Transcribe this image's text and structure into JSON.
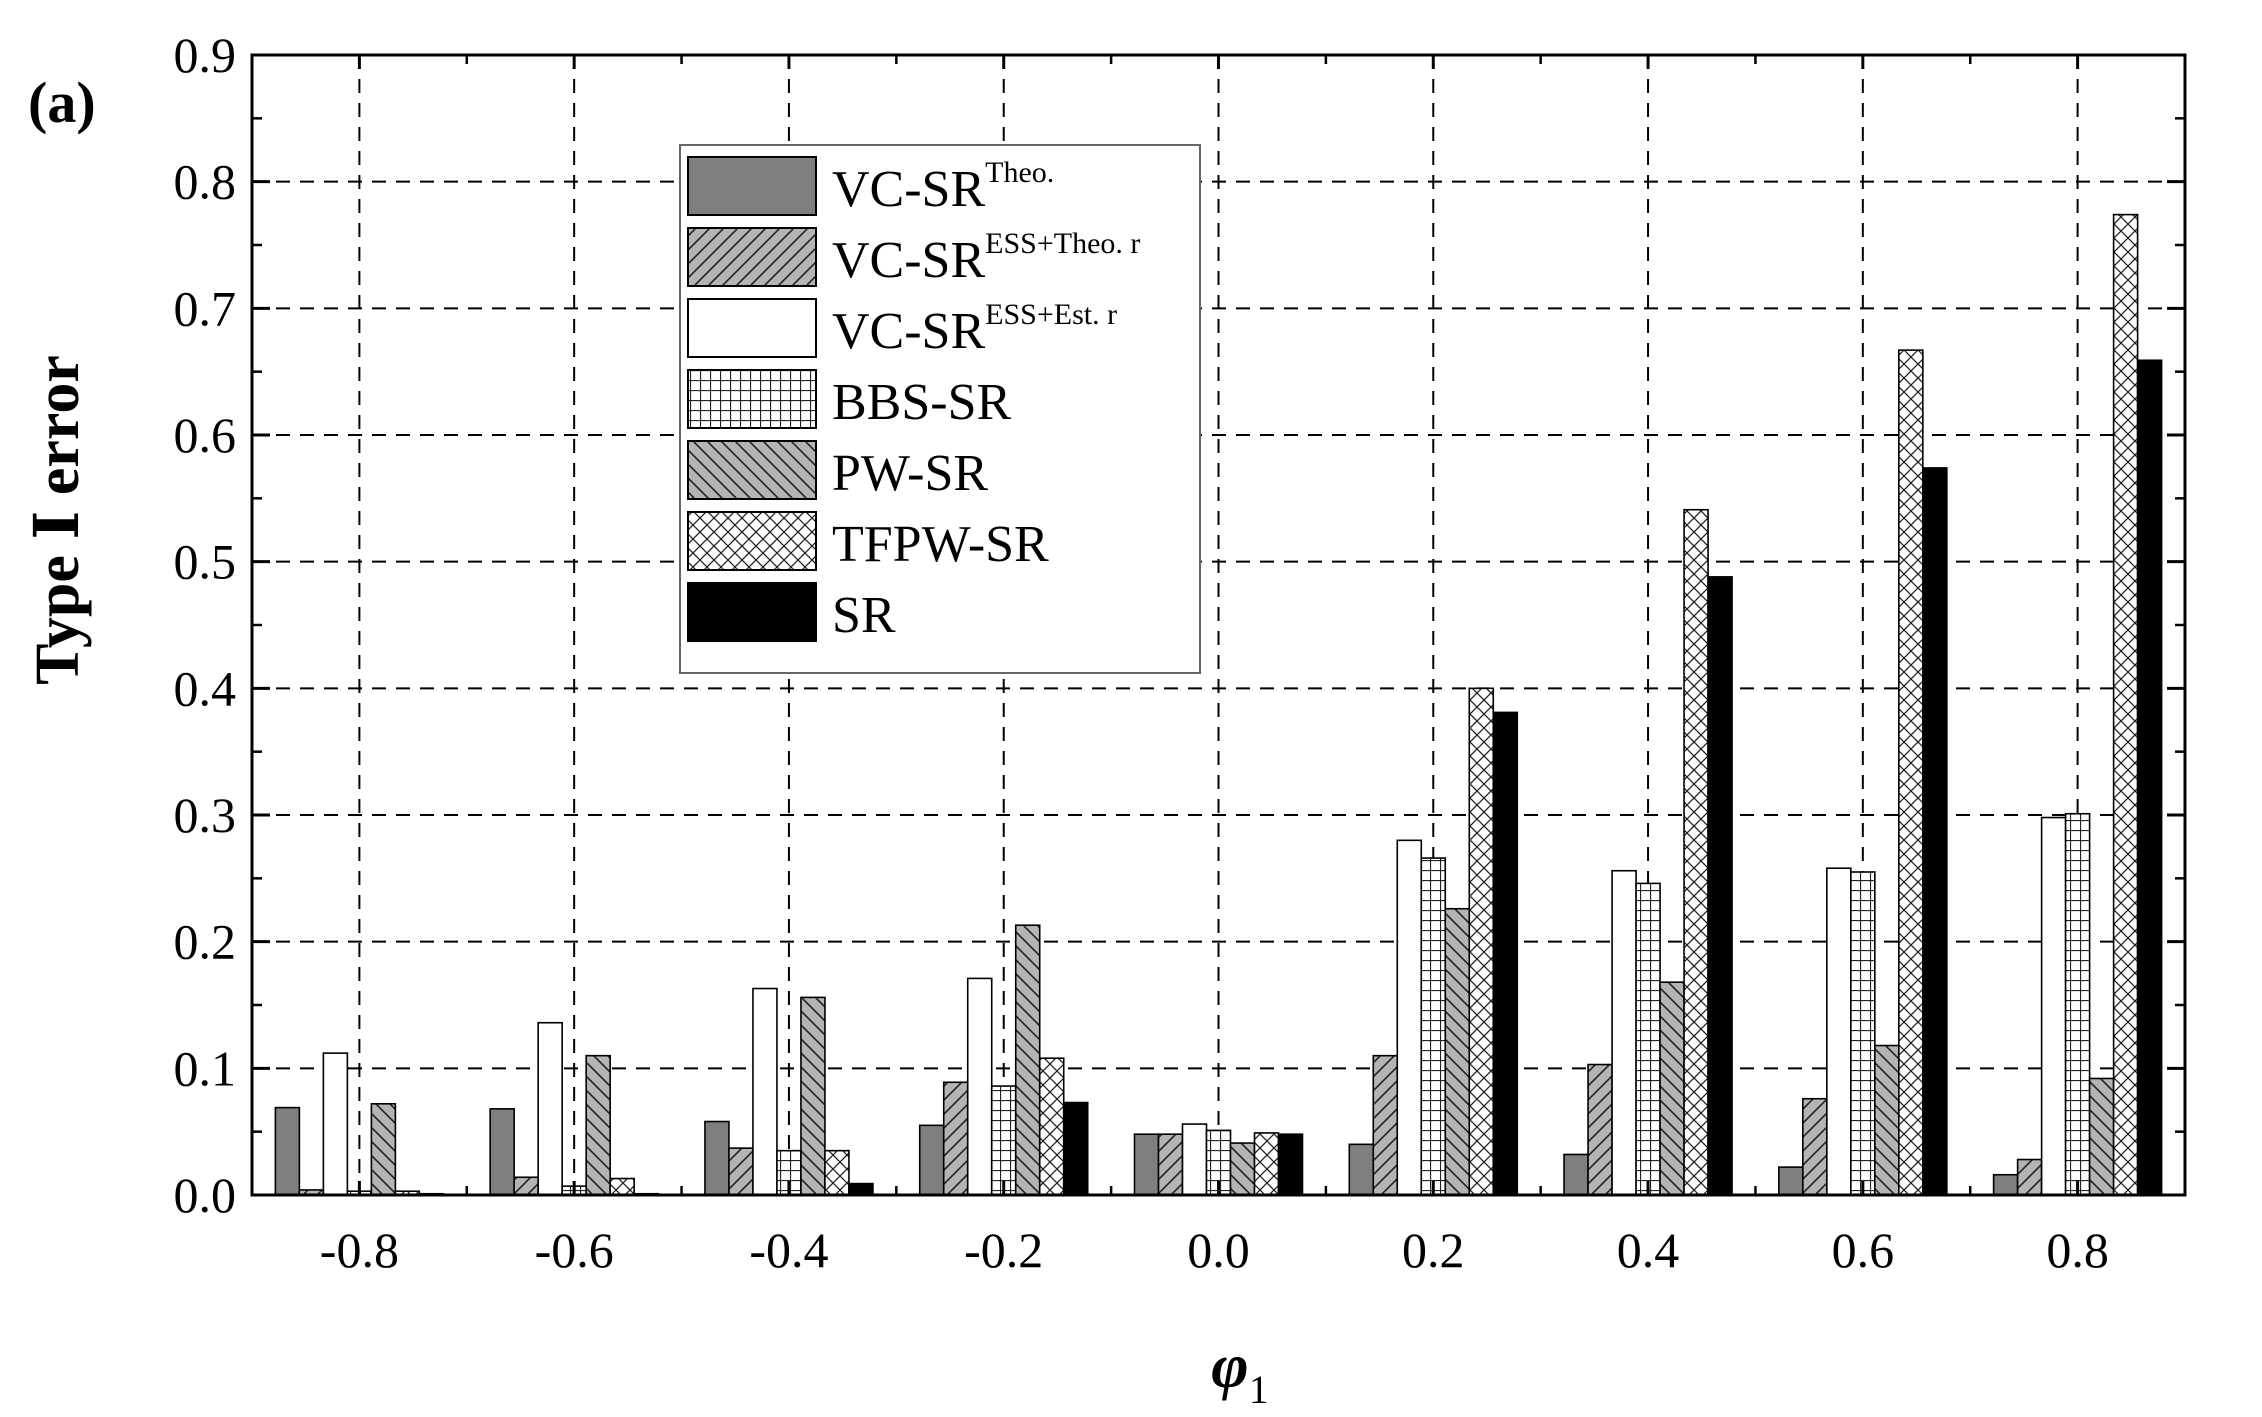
{
  "chart_data": {
    "type": "bar",
    "panel_label": "(a)",
    "xlabel": "φ",
    "xlabel_subscript": "1",
    "ylabel": "Type Ⅰ error",
    "ylim": [
      0,
      0.9
    ],
    "yticks": [
      "0.0",
      "0.1",
      "0.2",
      "0.3",
      "0.4",
      "0.5",
      "0.6",
      "0.7",
      "0.8",
      "0.9"
    ],
    "categories": [
      "-0.8",
      "-0.6",
      "-0.4",
      "-0.2",
      "0.0",
      "0.2",
      "0.4",
      "0.6",
      "0.8"
    ],
    "grid": true,
    "legend_position": "upper-left-center",
    "series": [
      {
        "name": "VC-SR",
        "name_sup": "Theo.",
        "pattern": "solid-gray",
        "values": [
          0.069,
          0.068,
          0.058,
          0.055,
          0.048,
          0.04,
          0.032,
          0.022,
          0.016
        ]
      },
      {
        "name": "VC-SR",
        "name_sup": "ESS+Theo. r",
        "pattern": "diagonal-gray",
        "values": [
          0.004,
          0.014,
          0.037,
          0.089,
          0.048,
          0.11,
          0.103,
          0.076,
          0.028
        ]
      },
      {
        "name": "VC-SR",
        "name_sup": "ESS+Est. r",
        "pattern": "white",
        "values": [
          0.112,
          0.136,
          0.163,
          0.171,
          0.056,
          0.28,
          0.256,
          0.258,
          0.298
        ]
      },
      {
        "name": "BBS-SR",
        "name_sup": "",
        "pattern": "grid",
        "values": [
          0.003,
          0.007,
          0.035,
          0.086,
          0.051,
          0.266,
          0.246,
          0.255,
          0.301
        ]
      },
      {
        "name": "PW-SR",
        "name_sup": "",
        "pattern": "backslash-gray",
        "values": [
          0.072,
          0.11,
          0.156,
          0.213,
          0.041,
          0.226,
          0.168,
          0.118,
          0.092
        ]
      },
      {
        "name": "TFPW-SR",
        "name_sup": "",
        "pattern": "crosshatch",
        "values": [
          0.003,
          0.013,
          0.035,
          0.108,
          0.049,
          0.4,
          0.541,
          0.667,
          0.774
        ]
      },
      {
        "name": "SR",
        "name_sup": "",
        "pattern": "black",
        "values": [
          0.001,
          0.001,
          0.009,
          0.073,
          0.048,
          0.381,
          0.488,
          0.574,
          0.659
        ]
      }
    ]
  }
}
